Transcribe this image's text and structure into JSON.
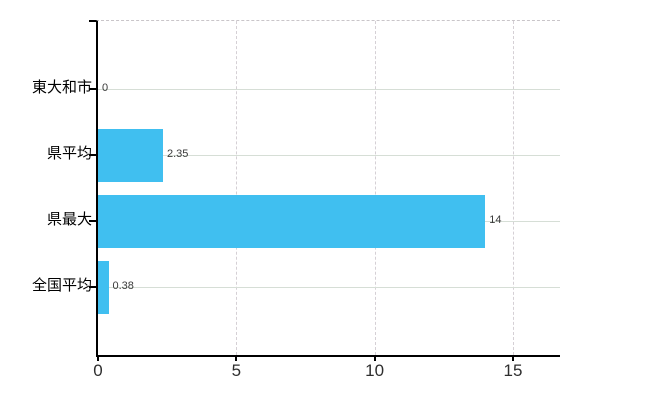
{
  "chart_data": {
    "type": "bar",
    "orientation": "horizontal",
    "categories": [
      "東大和市",
      "県平均",
      "県最大",
      "全国平均"
    ],
    "values": [
      0,
      2.35,
      14,
      0.38
    ],
    "value_labels": [
      "0",
      "2.35",
      "14",
      "0.38"
    ],
    "x_ticks": [
      0,
      5,
      10,
      15
    ],
    "xlim": [
      0,
      16.7
    ],
    "grid": true,
    "legend": false,
    "bar_color": "#40BFF0",
    "axis_color": "#000000",
    "h_grid_color": "#d6ded6",
    "v_grid_color": "#d5d0d5",
    "plot_top_border_color": "#c9c5c9",
    "category_label_color": "#000000",
    "value_label_color": "#3a3a3a",
    "tick_label_color": "#2e2e2e",
    "background_color": "#ffffff"
  }
}
